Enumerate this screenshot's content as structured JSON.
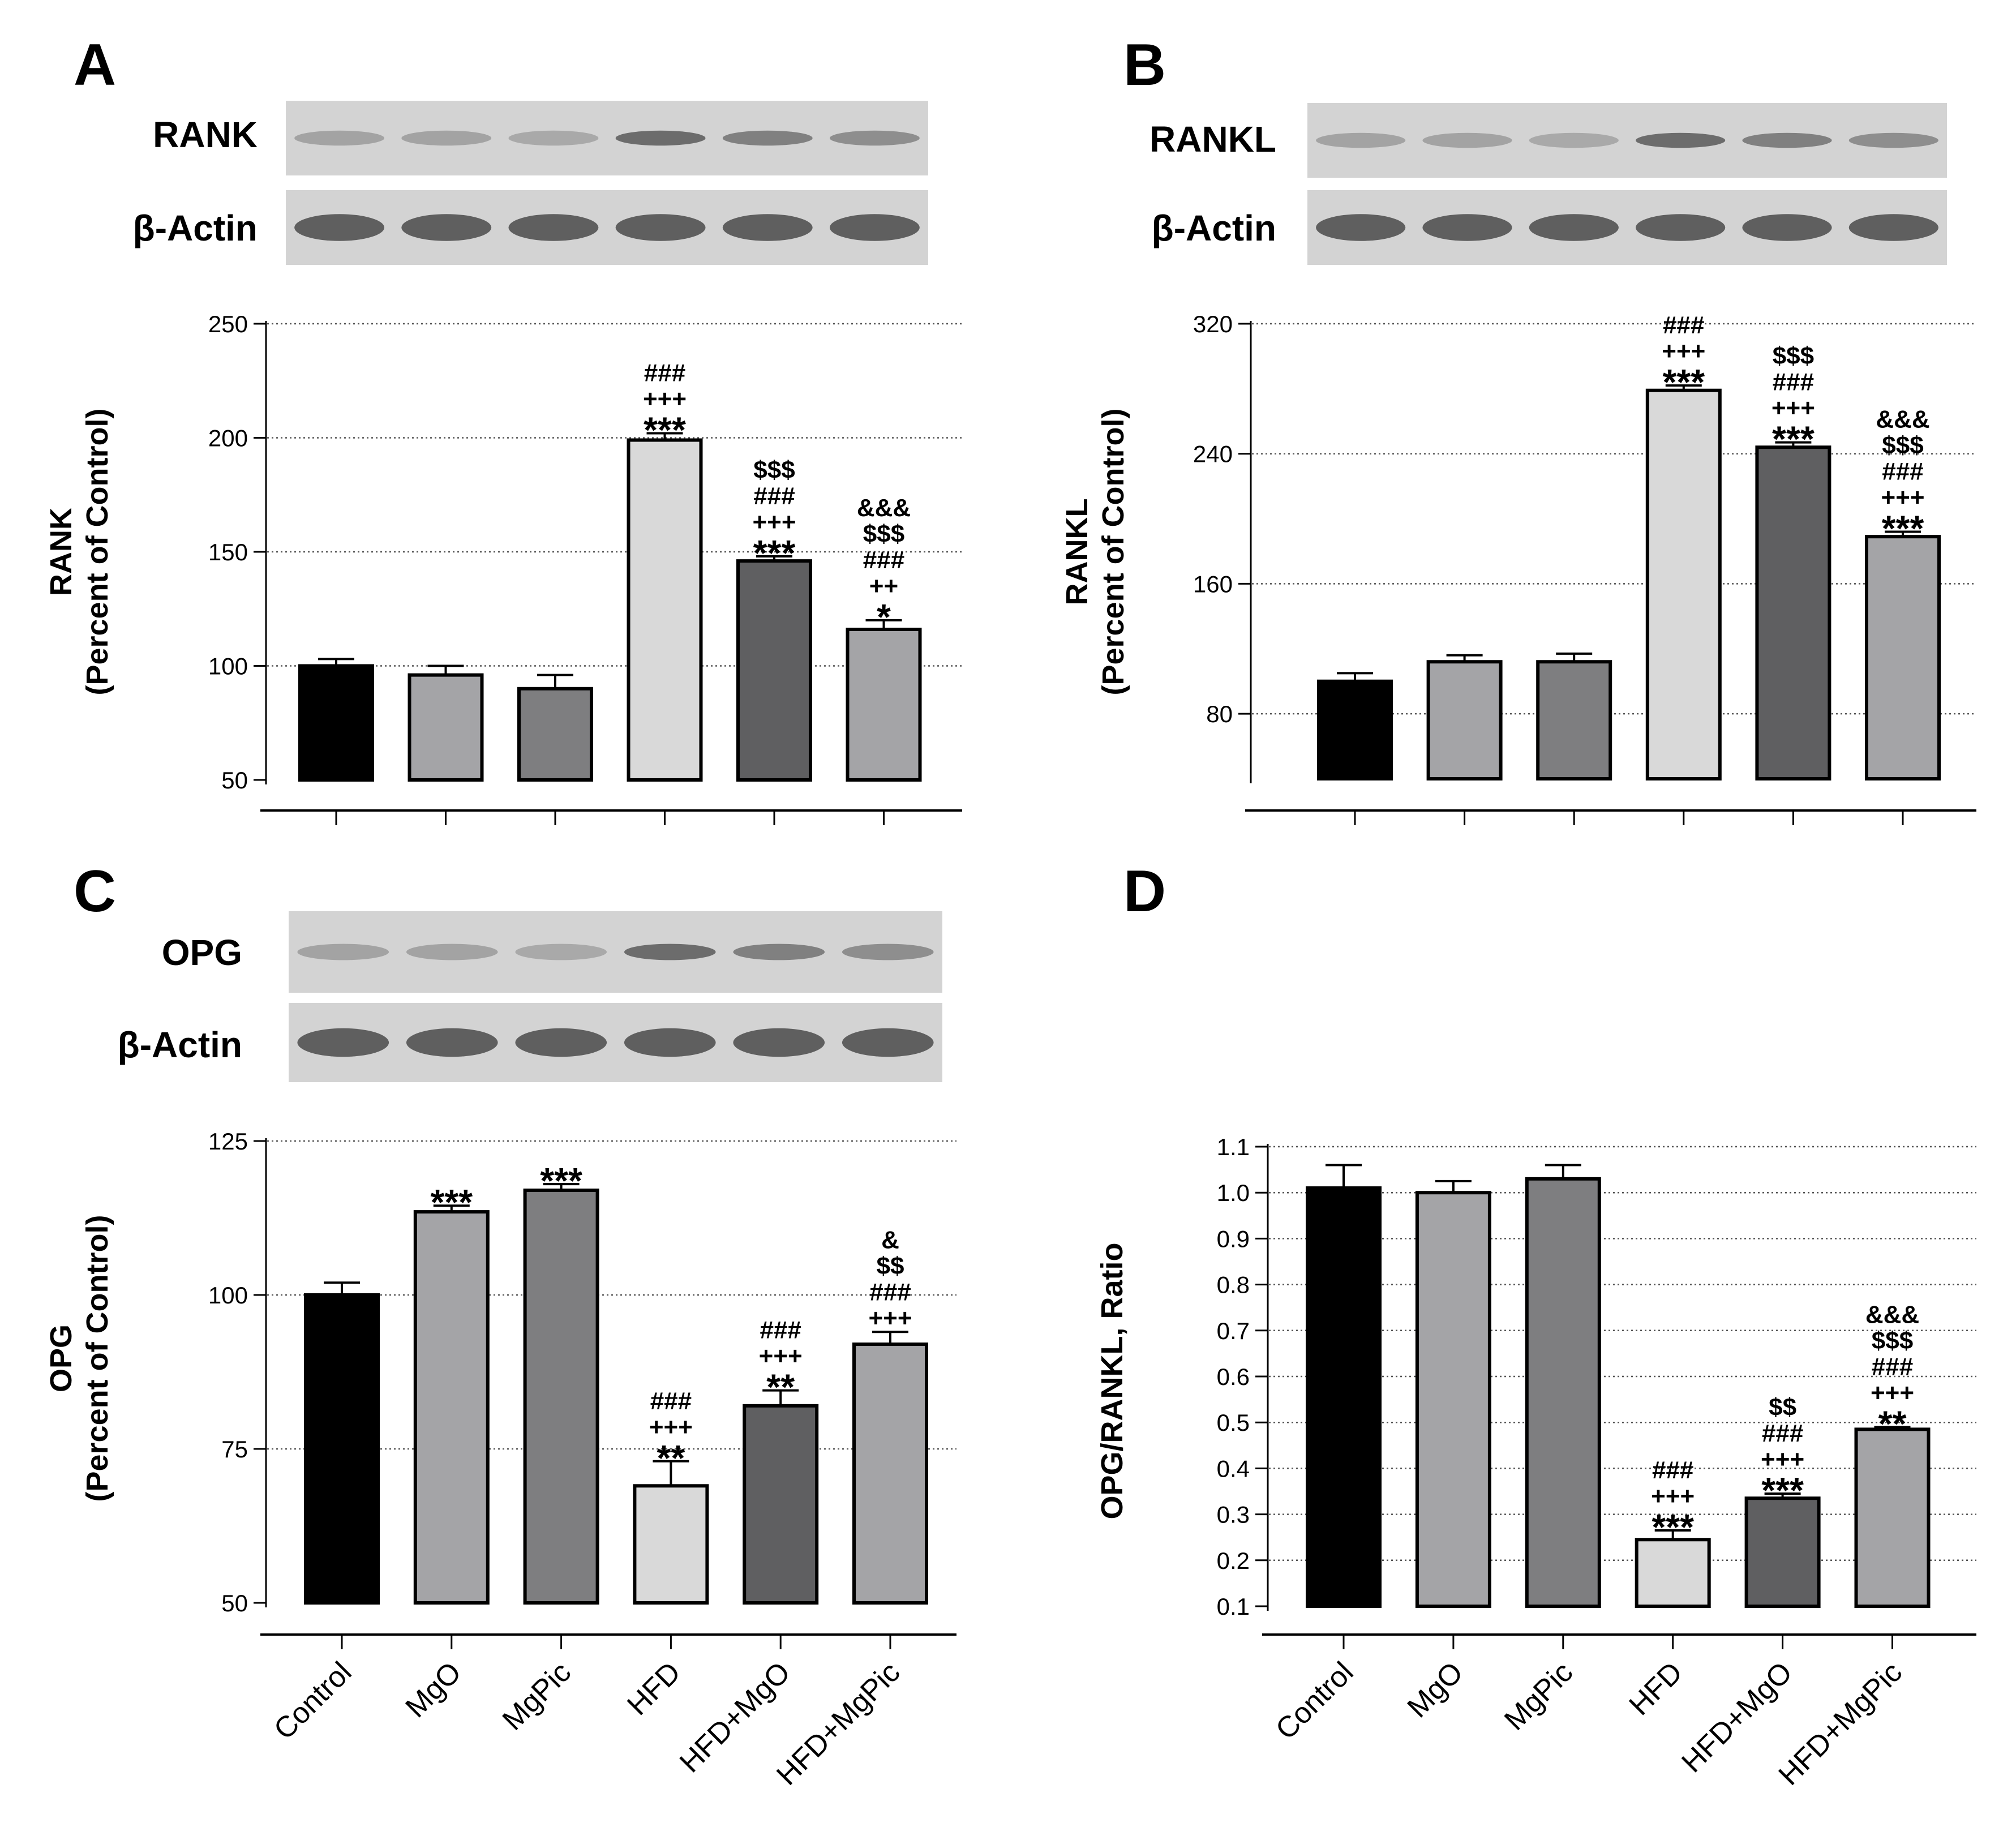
{
  "categories": [
    "Control",
    "MgO",
    "MgPic",
    "HFD",
    "HFD+MgO",
    "HFD+MgPic"
  ],
  "colors": {
    "bars": [
      "#000000",
      "#a4a4a7",
      "#7e7e80",
      "#d9d9d9",
      "#5f5f61",
      "#a4a4a7"
    ],
    "blot_bg": "#d3d3d3",
    "band": "#4a4a4a",
    "grid": "#555555"
  },
  "chart_data": [
    {
      "panel": "A",
      "type": "bar",
      "blot_labels": [
        "RANK",
        "β-Actin"
      ],
      "ylabel_lines": [
        "RANK",
        "(Percent of Control)"
      ],
      "ylim": [
        50,
        250
      ],
      "yticks": [
        50,
        100,
        150,
        200,
        250
      ],
      "categories": [
        "Control",
        "MgO",
        "MgPic",
        "HFD",
        "HFD+MgO",
        "HFD+MgPic"
      ],
      "values": [
        100,
        96,
        90,
        199,
        146,
        116
      ],
      "errors": [
        3,
        4,
        6,
        3,
        2,
        4
      ],
      "significance": [
        [],
        [],
        [],
        [
          "###",
          "+++",
          "***"
        ],
        [
          "$$$",
          "###",
          "+++",
          "***"
        ],
        [
          "&&&",
          "$$$",
          "###",
          "++",
          "*"
        ]
      ],
      "grid": "horizontal dotted"
    },
    {
      "panel": "B",
      "type": "bar",
      "blot_labels": [
        "RANKL",
        "β-Actin"
      ],
      "ylabel_lines": [
        "RANKL",
        "(Percent of Control)"
      ],
      "ylim": [
        40,
        320
      ],
      "yticks": [
        80,
        160,
        240,
        320
      ],
      "categories": [
        "Control",
        "MgO",
        "MgPic",
        "HFD",
        "HFD+MgO",
        "HFD+MgPic"
      ],
      "values": [
        100,
        112,
        112,
        279,
        244,
        189
      ],
      "errors": [
        5,
        4,
        5,
        3,
        3,
        3
      ],
      "significance": [
        [],
        [],
        [],
        [
          "###",
          "+++",
          "***"
        ],
        [
          "$$$",
          "###",
          "+++",
          "***"
        ],
        [
          "&&&",
          "$$$",
          "###",
          "+++",
          "***"
        ]
      ],
      "grid": "horizontal dotted"
    },
    {
      "panel": "C",
      "type": "bar",
      "blot_labels": [
        "OPG",
        "β-Actin"
      ],
      "ylabel_lines": [
        "OPG",
        "(Percent of Control)"
      ],
      "ylim": [
        50,
        125
      ],
      "yticks": [
        50,
        75,
        100,
        125
      ],
      "categories": [
        "Control",
        "MgO",
        "MgPic",
        "HFD",
        "HFD+MgO",
        "HFD+MgPic"
      ],
      "values": [
        100,
        113.5,
        117,
        69,
        82,
        92
      ],
      "errors": [
        2,
        1,
        1,
        4,
        2.5,
        2
      ],
      "significance": [
        [],
        [
          "***"
        ],
        [
          "***"
        ],
        [
          "###",
          "+++",
          "**"
        ],
        [
          "###",
          "+++",
          "**"
        ],
        [
          "&",
          "$$",
          "###",
          "+++"
        ]
      ],
      "grid": "horizontal dotted"
    },
    {
      "panel": "D",
      "type": "bar",
      "blot_labels": [],
      "ylabel_lines": [
        "OPG/RANKL, Ratio"
      ],
      "ylim": [
        0.1,
        1.1
      ],
      "yticks": [
        0.1,
        0.2,
        0.3,
        0.4,
        0.5,
        0.6,
        0.7,
        0.8,
        0.9,
        1.0,
        1.1
      ],
      "categories": [
        "Control",
        "MgO",
        "MgPic",
        "HFD",
        "HFD+MgO",
        "HFD+MgPic"
      ],
      "values": [
        1.01,
        1.0,
        1.03,
        0.245,
        0.335,
        0.485
      ],
      "errors": [
        0.05,
        0.025,
        0.03,
        0.02,
        0.01,
        0.005
      ],
      "significance": [
        [],
        [],
        [],
        [
          "###",
          "+++",
          "***"
        ],
        [
          "$$",
          "###",
          "+++",
          "***"
        ],
        [
          "&&&",
          "$$$",
          "###",
          "+++",
          "**"
        ]
      ],
      "grid": "horizontal dotted"
    }
  ]
}
